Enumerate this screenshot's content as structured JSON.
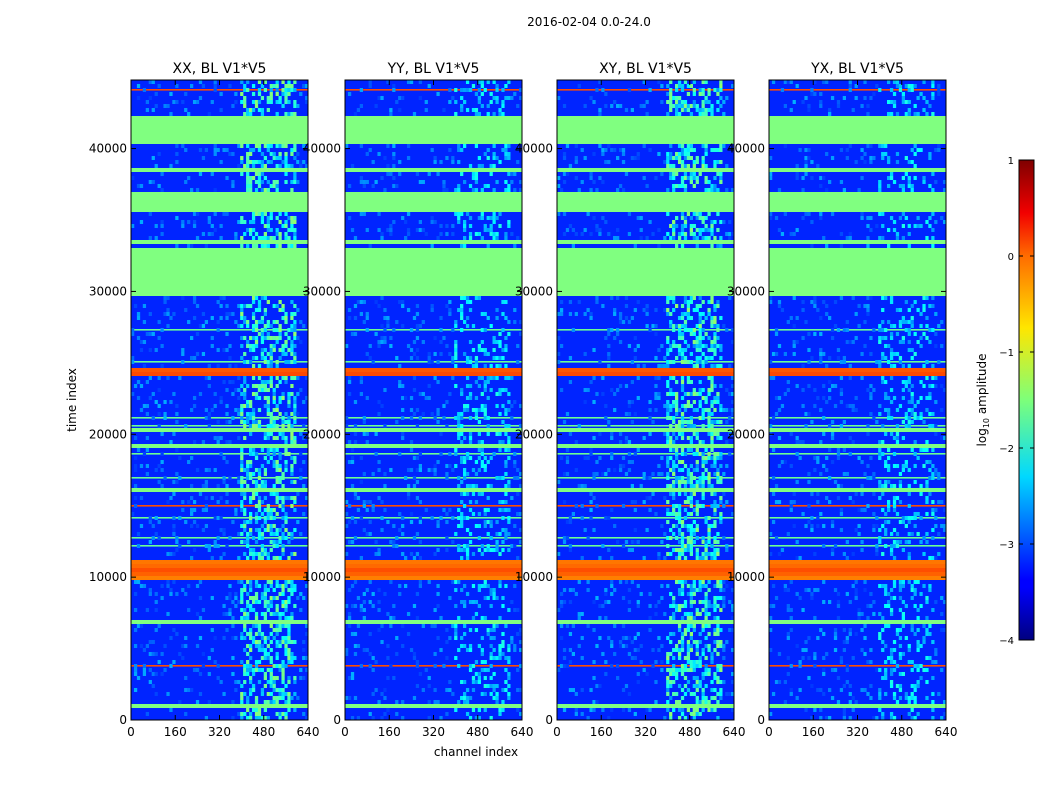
{
  "chart_data": {
    "type": "heatmap",
    "suptitle": "2016-02-04 0.0-24.0",
    "xlabel": "channel index",
    "ylabel": "time index",
    "x_range": [
      0,
      640
    ],
    "y_range": [
      0,
      44800
    ],
    "x_ticks": [
      0,
      160,
      320,
      480,
      640
    ],
    "y_ticks": [
      0,
      10000,
      20000,
      30000,
      40000
    ],
    "colormap": "jet",
    "panels": [
      {
        "title": "XX, BL V1*V5",
        "strong_rfi_channel_range": [
          400,
          600
        ]
      },
      {
        "title": "YY, BL V1*V5",
        "strong_rfi_channel_range": [
          400,
          600
        ]
      },
      {
        "title": "XY, BL V1*V5",
        "strong_rfi_channel_range": [
          400,
          600
        ]
      },
      {
        "title": "YX, BL V1*V5",
        "strong_rfi_channel_range": [
          400,
          600
        ]
      }
    ],
    "flagged_time_ranges": [
      [
        29800,
        33100
      ],
      [
        35700,
        37000
      ],
      [
        38300,
        38700
      ],
      [
        40300,
        42400
      ]
    ],
    "high_amplitude_time_ranges": [
      [
        9900,
        11200
      ],
      [
        24200,
        24600
      ]
    ],
    "background_log10_amplitude": -3.2,
    "flagged_log10_amplitude": -1.5,
    "colorbar": {
      "label_prefix": "log",
      "label_subscript": "10",
      "label_suffix": " amplitude",
      "range": [
        -4,
        1
      ],
      "ticks": [
        1,
        0,
        -1,
        -2,
        -3,
        -4
      ],
      "tick_labels": [
        "1",
        "0",
        "−1",
        "−2",
        "−3",
        "−4"
      ]
    }
  }
}
